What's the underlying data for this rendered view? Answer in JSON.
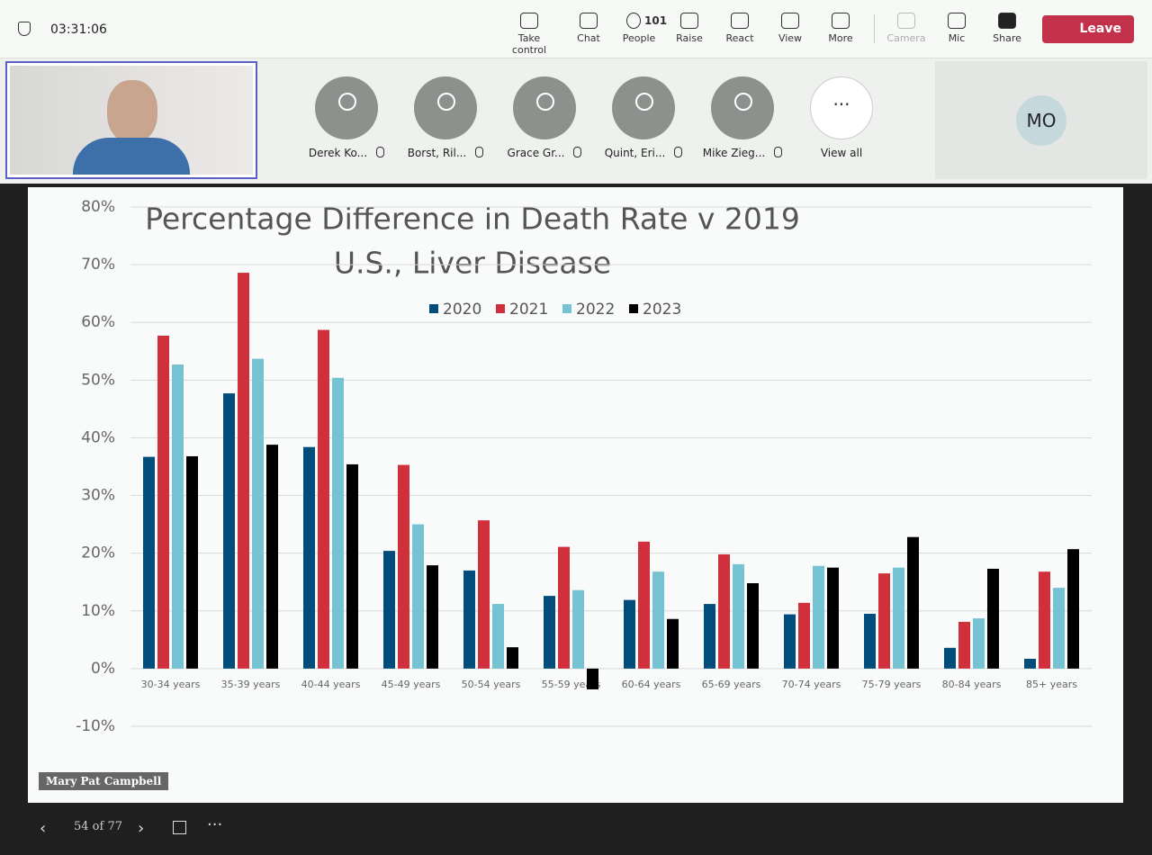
{
  "call": {
    "timer": "03:31:06",
    "toolbar": [
      "Take control",
      "Chat",
      "People",
      "Raise",
      "React",
      "View",
      "More",
      "Camera",
      "Mic",
      "Share"
    ],
    "people_count": "101",
    "leave": "Leave",
    "participants": [
      "Derek Ko...",
      "Borst, Ril...",
      "Grace Gr...",
      "Quint, Eri...",
      "Mike Zieg..."
    ],
    "view_all": "View all",
    "initials": "MO",
    "presenter": "Mary Pat Campbell",
    "slide_position": "54 of 77"
  },
  "chart_data": {
    "type": "bar",
    "title": "Percentage Difference in Death Rate v 2019",
    "subtitle": "U.S., Liver Disease",
    "categories": [
      "30-34 years",
      "35-39 years",
      "40-44 years",
      "45-49 years",
      "50-54 years",
      "55-59 years",
      "60-64 years",
      "65-69 years",
      "70-74 years",
      "75-79 years",
      "80-84 years",
      "85+ years"
    ],
    "series": [
      {
        "name": "2020",
        "color": "#004c7a",
        "values": [
          36.7,
          47.7,
          38.4,
          20.4,
          17.0,
          12.6,
          11.9,
          11.2,
          9.4,
          9.5,
          3.6,
          1.7
        ]
      },
      {
        "name": "2021",
        "color": "#d0303c",
        "values": [
          57.7,
          68.6,
          58.7,
          35.3,
          25.7,
          21.1,
          22.0,
          19.8,
          11.4,
          16.5,
          8.1,
          16.8
        ]
      },
      {
        "name": "2022",
        "color": "#74c2d2",
        "values": [
          52.7,
          53.7,
          50.4,
          25.0,
          11.2,
          13.6,
          16.8,
          18.1,
          17.8,
          17.5,
          8.7,
          14.0
        ]
      },
      {
        "name": "2023",
        "color": "#000000",
        "values": [
          36.8,
          38.8,
          35.4,
          17.9,
          3.7,
          -3.6,
          8.6,
          14.8,
          17.5,
          22.8,
          17.3,
          20.7
        ]
      }
    ],
    "ylim": [
      -10,
      80
    ],
    "yticks": [
      {
        "value": -10,
        "label": "-10%"
      },
      {
        "value": 0,
        "label": "0%"
      },
      {
        "value": 10,
        "label": "10%"
      },
      {
        "value": 20,
        "label": "20%"
      },
      {
        "value": 30,
        "label": "30%"
      },
      {
        "value": 40,
        "label": "40%"
      },
      {
        "value": 50,
        "label": "50%"
      },
      {
        "value": 60,
        "label": "60%"
      },
      {
        "value": 70,
        "label": "70%"
      },
      {
        "value": 80,
        "label": "80%"
      }
    ],
    "grid": true,
    "legend": "top"
  }
}
